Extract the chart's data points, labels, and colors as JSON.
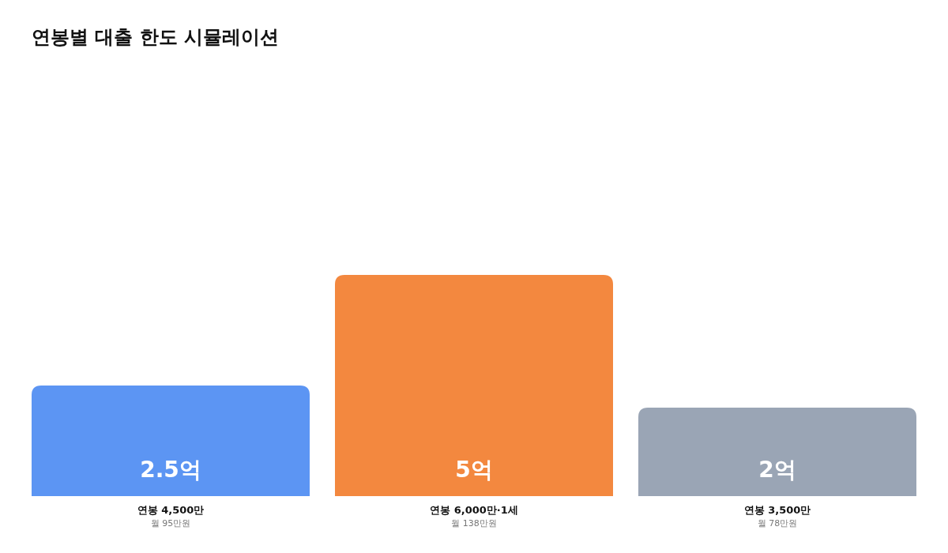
{
  "chart_data": {
    "type": "bar",
    "title": "연봉별 대출 한도 시뮬레이션",
    "categories": [
      "연봉 4,500만",
      "연봉 6,000만·1세",
      "연봉 3,500만"
    ],
    "values": [
      2.5,
      5,
      2
    ],
    "value_labels": [
      "2.5억",
      "5억",
      "2억"
    ],
    "colors": [
      "#5c95f3",
      "#f3883f",
      "#9aa5b5"
    ],
    "annotations": [
      "월 95만원",
      "월 138만원",
      "월 78만원"
    ]
  }
}
